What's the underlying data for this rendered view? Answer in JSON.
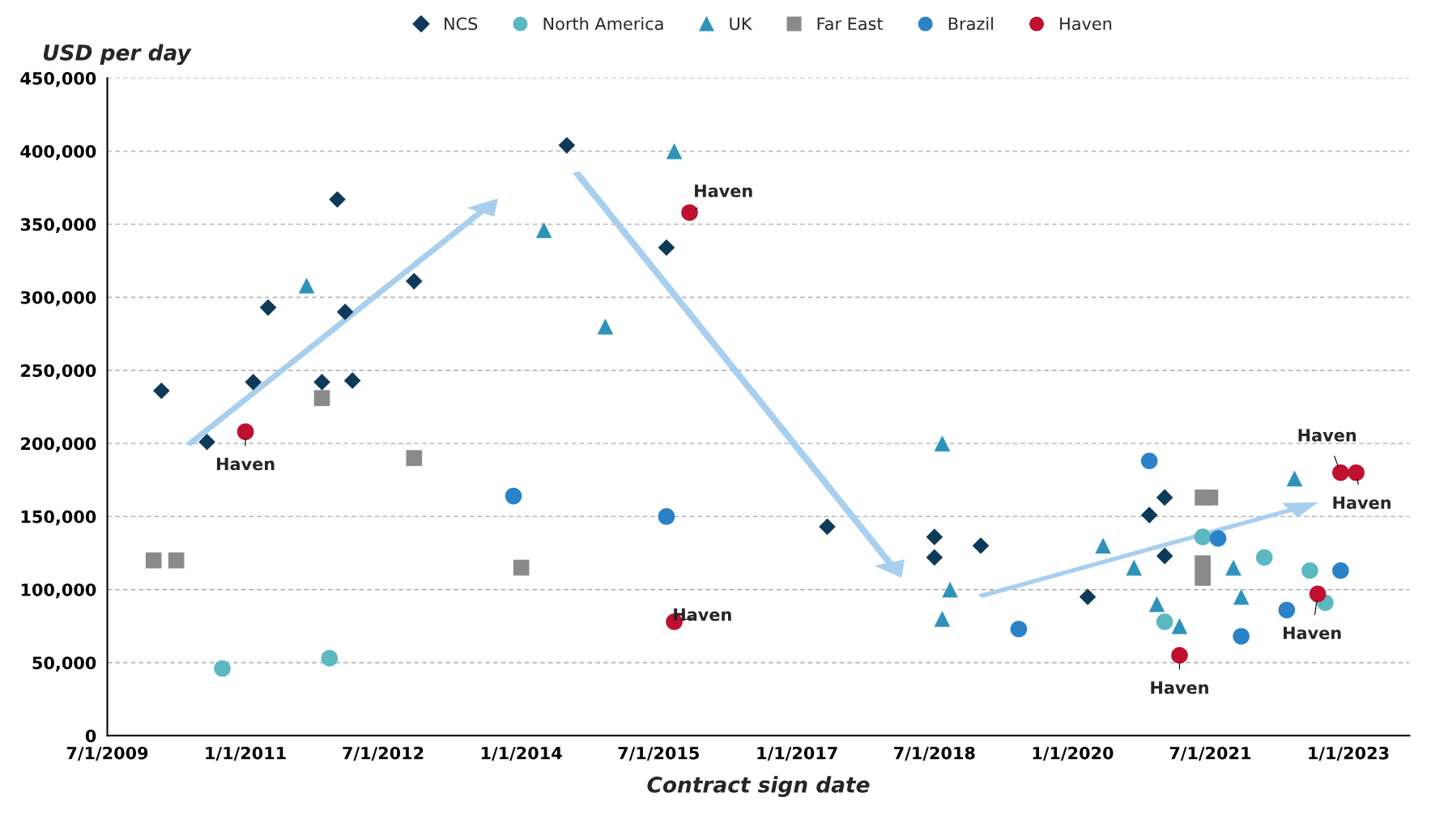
{
  "chart_data": {
    "type": "scatter",
    "xlabel": "Contract sign date",
    "ylabel": "USD per day",
    "xlim": [
      "2009-07-01",
      "2023-09-01"
    ],
    "ylim": [
      0,
      450000
    ],
    "xticks": [
      {
        "value": "2009-07-01",
        "label": "7/1/2009"
      },
      {
        "value": "2011-01-01",
        "label": "1/1/2011"
      },
      {
        "value": "2012-07-01",
        "label": "7/1/2012"
      },
      {
        "value": "2014-01-01",
        "label": "1/1/2014"
      },
      {
        "value": "2015-07-01",
        "label": "7/1/2015"
      },
      {
        "value": "2017-01-01",
        "label": "1/1/2017"
      },
      {
        "value": "2018-07-01",
        "label": "7/1/2018"
      },
      {
        "value": "2020-01-01",
        "label": "1/1/2020"
      },
      {
        "value": "2021-07-01",
        "label": "7/1/2021"
      },
      {
        "value": "2023-01-01",
        "label": "1/1/2023"
      }
    ],
    "yticks": [
      {
        "value": 0,
        "label": "0"
      },
      {
        "value": 50000,
        "label": "50,000"
      },
      {
        "value": 100000,
        "label": "100,000"
      },
      {
        "value": 150000,
        "label": "150,000"
      },
      {
        "value": 200000,
        "label": "200,000"
      },
      {
        "value": 250000,
        "label": "250,000"
      },
      {
        "value": 300000,
        "label": "300,000"
      },
      {
        "value": 350000,
        "label": "350,000"
      },
      {
        "value": 400000,
        "label": "400,000"
      },
      {
        "value": 450000,
        "label": "450,000"
      }
    ],
    "grid": "y",
    "legend": "top",
    "series": [
      {
        "name": "NCS",
        "color": "#0d3a58",
        "marker": "diamond",
        "x": [
          "2010-02",
          "2010-08",
          "2011-02",
          "2011-04",
          "2011-11",
          "2012-01",
          "2012-02",
          "2012-03",
          "2012-11",
          "2014-07",
          "2015-08",
          "2017-05",
          "2018-07",
          "2018-07",
          "2019-01",
          "2020-03",
          "2020-11",
          "2021-01",
          "2021-01"
        ],
        "values": [
          236000,
          201000,
          242000,
          293000,
          242000,
          367000,
          290000,
          243000,
          311000,
          404000,
          334000,
          143000,
          136000,
          122000,
          130000,
          95000,
          151000,
          163000,
          123000
        ]
      },
      {
        "name": "North America",
        "color": "#5bb8c0",
        "marker": "circle",
        "x": [
          "2010-10",
          "2011-12",
          "2021-01",
          "2021-06",
          "2022-02",
          "2022-08",
          "2022-10"
        ],
        "values": [
          46000,
          53000,
          78000,
          136000,
          122000,
          113000,
          91000
        ]
      },
      {
        "name": "UK",
        "color": "#2e93bb",
        "marker": "triangle",
        "x": [
          "2011-09",
          "2014-04",
          "2014-12",
          "2015-09",
          "2018-08",
          "2018-08",
          "2018-09",
          "2020-05",
          "2020-09",
          "2020-12",
          "2021-03",
          "2021-10",
          "2021-11",
          "2022-06"
        ],
        "values": [
          308000,
          346000,
          280000,
          400000,
          200000,
          80000,
          100000,
          130000,
          115000,
          90000,
          75000,
          115000,
          95000,
          176000
        ]
      },
      {
        "name": "Far East",
        "color": "#8a8a8a",
        "marker": "square",
        "x": [
          "2010-01",
          "2010-04",
          "2011-11",
          "2012-11",
          "2014-01",
          "2021-06",
          "2021-07",
          "2021-06",
          "2021-06"
        ],
        "values": [
          120000,
          120000,
          231000,
          190000,
          115000,
          163000,
          163000,
          118000,
          108000
        ]
      },
      {
        "name": "Brazil",
        "color": "#2a82c8",
        "marker": "circle",
        "x": [
          "2013-12",
          "2015-08",
          "2019-06",
          "2020-11",
          "2021-08",
          "2021-11",
          "2022-05",
          "2022-12"
        ],
        "values": [
          164000,
          150000,
          73000,
          188000,
          135000,
          68000,
          86000,
          113000
        ]
      },
      {
        "name": "Haven",
        "color": "#c0102f",
        "marker": "circle",
        "x": [
          "2011-01",
          "2015-09",
          "2015-11",
          "2021-03",
          "2022-09",
          "2022-12",
          "2023-02"
        ],
        "values": [
          208000,
          78000,
          358000,
          55000,
          97000,
          180000,
          180000
        ]
      }
    ],
    "annotations": [
      {
        "text": "Haven",
        "x": "2011-01",
        "y": 208000
      },
      {
        "text": "Haven",
        "x": "2015-09",
        "y": 78000
      },
      {
        "text": "Haven",
        "x": "2015-11",
        "y": 358000
      },
      {
        "text": "Haven",
        "x": "2021-03",
        "y": 55000
      },
      {
        "text": "Haven",
        "x": "2022-09",
        "y": 97000
      },
      {
        "text": "Haven",
        "x": "2022-12",
        "y": 180000
      },
      {
        "text": "Haven",
        "x": "2023-02",
        "y": 180000
      }
    ]
  }
}
